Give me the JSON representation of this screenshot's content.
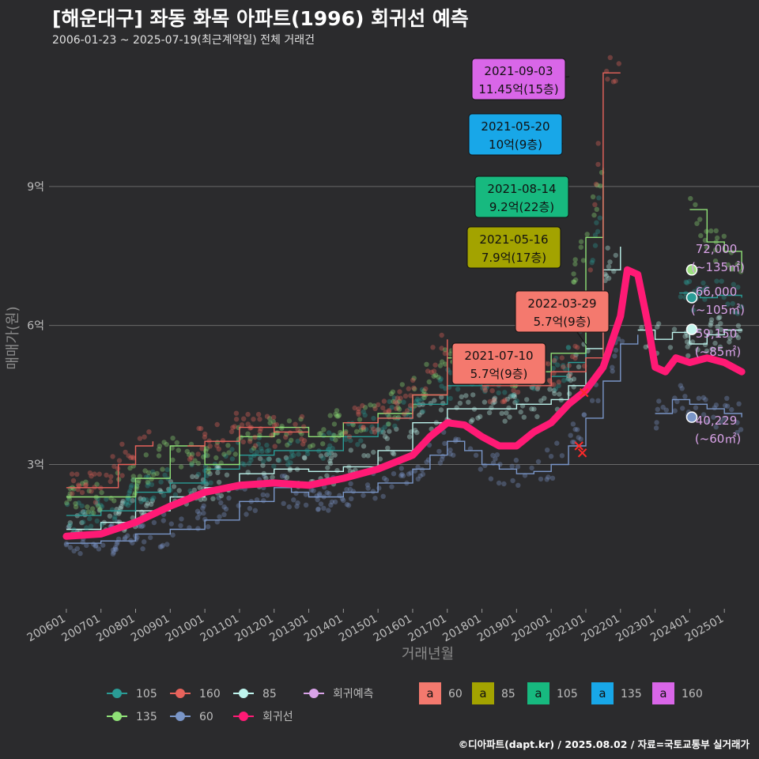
{
  "header": {
    "title": "[해운대구] 좌동 화목 아파트(1996) 회귀선 예측",
    "subtitle": "2006-01-23 ~ 2025-07-19(최근계약일) 전체 거래건",
    "credit": "©디아파트(dapt.kr) / 2025.08.02 / 자료=국토교통부 실거래가"
  },
  "chart_data": {
    "type": "line",
    "xlabel": "거래년월",
    "ylabel": "매매가(원)",
    "x_range": [
      "2006-01",
      "2025-12"
    ],
    "ylim": [
      0,
      11.5
    ],
    "y_ticks": [
      {
        "value": 3,
        "label": "3억"
      },
      {
        "value": 6,
        "label": "6억"
      },
      {
        "value": 9,
        "label": "9억"
      }
    ],
    "x_ticks": [
      "200601",
      "200701",
      "200801",
      "200901",
      "201001",
      "201101",
      "201201",
      "201301",
      "201401",
      "201501",
      "201601",
      "201701",
      "201801",
      "201901",
      "202001",
      "202101",
      "202201",
      "202301",
      "202401",
      "202501"
    ],
    "colors": {
      "105": "#2a9c96",
      "160": "#e8635c",
      "85": "#bff5ee",
      "135": "#8fe077",
      "60": "#7a96c8",
      "regression": "#ff1a75",
      "prediction": "#d9a3e8"
    },
    "series": [
      {
        "name": "60",
        "color": "#7a96c8",
        "points": [
          [
            2006.0,
            1.3
          ],
          [
            2007.0,
            1.35
          ],
          [
            2008.0,
            1.5
          ],
          [
            2009.0,
            1.6
          ],
          [
            2010.0,
            1.8
          ],
          [
            2011.0,
            2.2
          ],
          [
            2012.0,
            2.5
          ],
          [
            2012.5,
            2.4
          ],
          [
            2013.0,
            2.3
          ],
          [
            2014.0,
            2.4
          ],
          [
            2015.0,
            2.6
          ],
          [
            2016.0,
            2.9
          ],
          [
            2016.5,
            3.2
          ],
          [
            2017.0,
            3.5
          ],
          [
            2017.5,
            3.3
          ],
          [
            2018.0,
            3.0
          ],
          [
            2018.5,
            2.9
          ],
          [
            2019.0,
            2.8
          ],
          [
            2019.5,
            2.85
          ],
          [
            2020.0,
            3.0
          ],
          [
            2020.5,
            3.4
          ],
          [
            2021.0,
            4.0
          ],
          [
            2021.5,
            4.8
          ],
          [
            2022.0,
            5.6
          ],
          [
            2022.5,
            5.8
          ]
        ]
      },
      {
        "name": "60",
        "color": "#7a96c8",
        "points": [
          [
            2023.0,
            4.1
          ],
          [
            2023.5,
            4.4
          ],
          [
            2024.0,
            4.3
          ],
          [
            2024.5,
            4.2
          ],
          [
            2025.0,
            4.1
          ],
          [
            2025.5,
            4.02
          ]
        ]
      },
      {
        "name": "85",
        "color": "#bff5ee",
        "points": [
          [
            2006.0,
            1.6
          ],
          [
            2007.0,
            1.75
          ],
          [
            2008.0,
            2.0
          ],
          [
            2009.0,
            2.3
          ],
          [
            2010.0,
            2.5
          ],
          [
            2011.0,
            2.8
          ],
          [
            2012.0,
            2.9
          ],
          [
            2013.0,
            2.85
          ],
          [
            2014.0,
            2.95
          ],
          [
            2015.0,
            3.3
          ],
          [
            2016.0,
            3.9
          ],
          [
            2017.0,
            4.2
          ],
          [
            2018.0,
            4.2
          ],
          [
            2019.0,
            4.3
          ],
          [
            2020.0,
            4.4
          ],
          [
            2020.5,
            4.7
          ],
          [
            2021.0,
            5.5
          ],
          [
            2021.5,
            7.2
          ],
          [
            2022.0,
            7.7
          ]
        ]
      },
      {
        "name": "85",
        "color": "#bff5ee",
        "points": [
          [
            2022.5,
            5.9
          ],
          [
            2023.0,
            5.7
          ],
          [
            2023.5,
            5.85
          ],
          [
            2024.0,
            5.6
          ],
          [
            2024.5,
            5.8
          ],
          [
            2025.0,
            5.9
          ],
          [
            2025.5,
            5.915
          ]
        ]
      },
      {
        "name": "105",
        "color": "#2a9c96",
        "points": [
          [
            2006.0,
            1.9
          ],
          [
            2007.0,
            2.0
          ],
          [
            2008.0,
            2.4
          ],
          [
            2009.0,
            2.6
          ],
          [
            2010.0,
            2.9
          ],
          [
            2011.0,
            3.2
          ],
          [
            2012.0,
            3.3
          ],
          [
            2013.0,
            3.3
          ],
          [
            2014.0,
            3.6
          ],
          [
            2015.0,
            4.0
          ],
          [
            2016.0,
            4.3
          ],
          [
            2017.0,
            4.7
          ],
          [
            2018.0,
            4.9
          ],
          [
            2019.0,
            4.7
          ],
          [
            2020.0,
            4.9
          ],
          [
            2020.5,
            5.2
          ],
          [
            2021.0,
            6.2
          ],
          [
            2021.5,
            9.2
          ]
        ]
      },
      {
        "name": "105",
        "color": "#2a9c96",
        "points": [
          [
            2023.7,
            6.7
          ],
          [
            2024.3,
            6.6
          ],
          [
            2024.8,
            6.65
          ],
          [
            2025.5,
            6.6
          ]
        ]
      },
      {
        "name": "135",
        "color": "#8fe077",
        "points": [
          [
            2006.0,
            2.3
          ],
          [
            2007.0,
            2.3
          ],
          [
            2008.0,
            2.7
          ],
          [
            2009.0,
            3.4
          ],
          [
            2010.0,
            3.0
          ],
          [
            2011.0,
            3.6
          ],
          [
            2012.0,
            3.8
          ],
          [
            2013.0,
            3.6
          ],
          [
            2014.0,
            3.9
          ],
          [
            2015.0,
            4.1
          ],
          [
            2016.0,
            4.5
          ],
          [
            2017.0,
            5.3
          ],
          [
            2018.0,
            5.2
          ],
          [
            2019.0,
            5.0
          ],
          [
            2020.0,
            5.4
          ],
          [
            2021.0,
            7.9
          ],
          [
            2021.5,
            9.4
          ]
        ]
      },
      {
        "name": "135",
        "color": "#8fe077",
        "points": [
          [
            2024.0,
            8.5
          ],
          [
            2024.5,
            7.8
          ],
          [
            2025.0,
            7.6
          ],
          [
            2025.5,
            7.2
          ]
        ]
      },
      {
        "name": "160",
        "color": "#e8635c",
        "points": [
          [
            2006.0,
            2.5
          ],
          [
            2007.0,
            2.5
          ],
          [
            2007.5,
            3.0
          ],
          [
            2008.0,
            3.4
          ],
          [
            2008.5,
            3.5
          ]
        ]
      },
      {
        "name": "160",
        "color": "#e8635c",
        "points": [
          [
            2009.5,
            3.4
          ],
          [
            2010.0,
            3.5
          ],
          [
            2011.0,
            3.8
          ],
          [
            2012.0,
            3.7
          ],
          [
            2013.0,
            3.7
          ]
        ]
      },
      {
        "name": "160",
        "color": "#e8635c",
        "points": [
          [
            2014.0,
            3.9
          ],
          [
            2015.0,
            4.0
          ],
          [
            2016.0,
            4.5
          ],
          [
            2017.0,
            5.7
          ]
        ]
      },
      {
        "name": "160",
        "color": "#e8635c",
        "points": [
          [
            2018.0,
            4.7
          ],
          [
            2019.0,
            4.7
          ],
          [
            2020.0,
            5.0
          ],
          [
            2021.0,
            5.3
          ],
          [
            2021.5,
            11.45
          ],
          [
            2022.0,
            11.45
          ]
        ]
      },
      {
        "name": "회귀선",
        "color": "#ff1a75",
        "points": [
          [
            2006.0,
            1.45
          ],
          [
            2007.0,
            1.5
          ],
          [
            2008.0,
            1.75
          ],
          [
            2009.0,
            2.1
          ],
          [
            2010.0,
            2.4
          ],
          [
            2011.0,
            2.55
          ],
          [
            2012.0,
            2.6
          ],
          [
            2013.0,
            2.55
          ],
          [
            2014.0,
            2.7
          ],
          [
            2015.0,
            2.9
          ],
          [
            2016.0,
            3.2
          ],
          [
            2016.5,
            3.6
          ],
          [
            2017.0,
            3.9
          ],
          [
            2017.5,
            3.85
          ],
          [
            2018.0,
            3.6
          ],
          [
            2018.5,
            3.4
          ],
          [
            2019.0,
            3.4
          ],
          [
            2019.5,
            3.7
          ],
          [
            2020.0,
            3.9
          ],
          [
            2020.5,
            4.3
          ],
          [
            2021.0,
            4.6
          ],
          [
            2021.5,
            5.1
          ],
          [
            2022.0,
            6.2
          ],
          [
            2022.2,
            7.2
          ],
          [
            2022.5,
            7.1
          ],
          [
            2022.8,
            6.0
          ],
          [
            2023.0,
            5.1
          ],
          [
            2023.3,
            5.0
          ],
          [
            2023.6,
            5.3
          ],
          [
            2024.0,
            5.2
          ],
          [
            2024.5,
            5.3
          ],
          [
            2025.0,
            5.2
          ],
          [
            2025.5,
            5.0
          ]
        ]
      }
    ],
    "annotations": [
      {
        "date": "2021-09-03",
        "price": "11.45억(15층)",
        "color": "#d966e8",
        "series": "160"
      },
      {
        "date": "2021-05-20",
        "price": "10억(9층)",
        "color": "#18a7e8",
        "series": "135"
      },
      {
        "date": "2021-08-14",
        "price": "9.2억(22층)",
        "color": "#17b97f",
        "series": "105"
      },
      {
        "date": "2021-05-16",
        "price": "7.9억(17층)",
        "color": "#a3a300",
        "series": "85"
      },
      {
        "date": "2022-03-29",
        "price": "5.7억(9층)",
        "color": "#f4796e",
        "series": "60"
      },
      {
        "date": "2021-07-10",
        "price": "5.7억(9층)",
        "color": "#f4796e",
        "series": "60"
      }
    ],
    "predictions": [
      {
        "value": "72,000",
        "area": "(~135㎡)",
        "y": 7.2,
        "dot_color": "#9be07f"
      },
      {
        "value": "66,000",
        "area": "(~105㎡)",
        "y": 6.6,
        "dot_color": "#2a9c96"
      },
      {
        "value": "59,150",
        "area": "(~85㎡)",
        "y": 5.915,
        "dot_color": "#c5f5ee"
      },
      {
        "value": "40,229",
        "area": "(~60㎡)",
        "y": 4.02,
        "dot_color": "#7a96c8"
      }
    ]
  },
  "legend": {
    "lines": [
      {
        "label": "105",
        "color": "#2a9c96"
      },
      {
        "label": "160",
        "color": "#e8635c"
      },
      {
        "label": "85",
        "color": "#bff5ee"
      },
      {
        "label": "회귀예측",
        "color": "#d9a3e8"
      },
      {
        "label": "135",
        "color": "#8fe077"
      },
      {
        "label": "60",
        "color": "#7a96c8"
      },
      {
        "label": "회귀선",
        "color": "#ff1a75"
      }
    ],
    "boxes": [
      {
        "label": "60",
        "color": "#f4796e"
      },
      {
        "label": "85",
        "color": "#a3a300"
      },
      {
        "label": "105",
        "color": "#17b97f"
      },
      {
        "label": "135",
        "color": "#18a7e8"
      },
      {
        "label": "160",
        "color": "#d966e8"
      }
    ],
    "box_glyph": "a"
  }
}
